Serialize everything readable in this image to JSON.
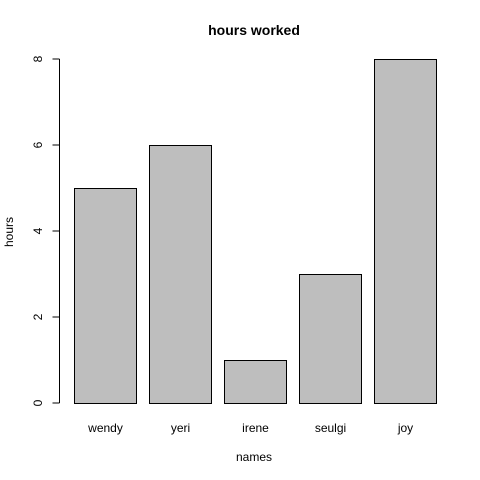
{
  "chart_data": {
    "type": "bar",
    "title": "hours worked",
    "xlabel": "names",
    "ylabel": "hours",
    "categories": [
      "wendy",
      "yeri",
      "irene",
      "seulgi",
      "joy"
    ],
    "values": [
      5,
      6,
      1,
      3,
      8
    ],
    "ylim": [
      0,
      8
    ],
    "yticks": [
      0,
      2,
      4,
      6,
      8
    ],
    "bar_color": "#bebebe",
    "grid": false,
    "legend": "none"
  }
}
